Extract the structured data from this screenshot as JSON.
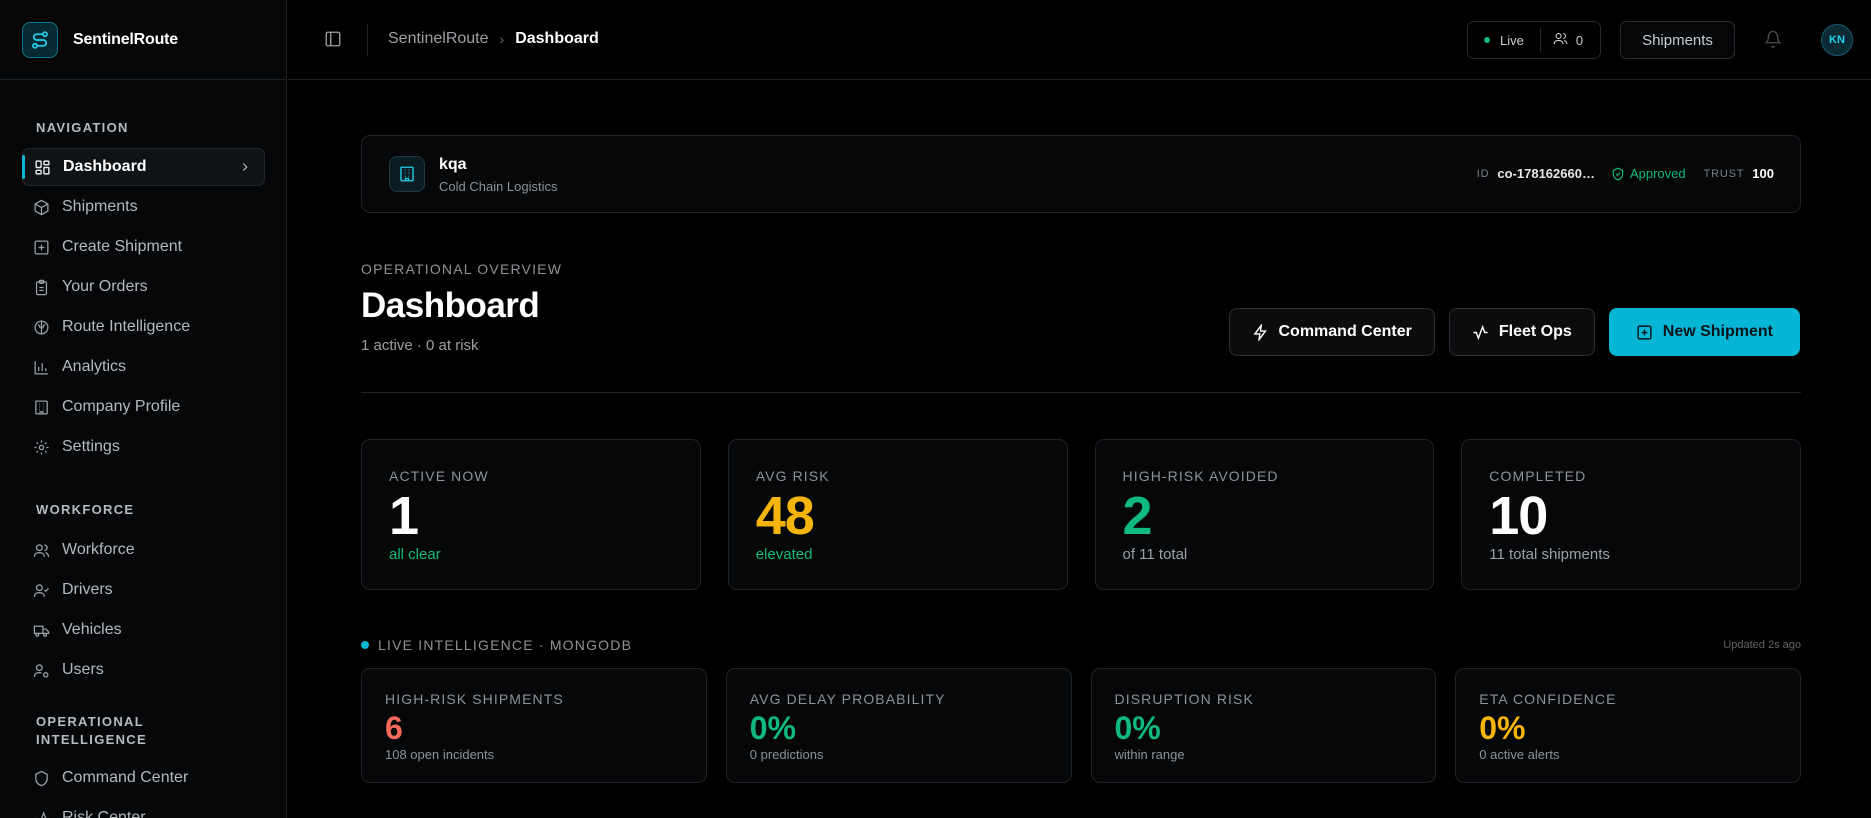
{
  "app": {
    "name": "SentinelRoute"
  },
  "colors": {
    "accent": "#06b6d4",
    "good": "#10b981",
    "warn": "#f5b40b",
    "danger": "#f26b5b"
  },
  "sidebar": {
    "sections": [
      {
        "title": "NAVIGATION",
        "items": [
          {
            "label": "Dashboard",
            "icon": "grid-icon",
            "active": true
          },
          {
            "label": "Shipments",
            "icon": "package-icon"
          },
          {
            "label": "Create Shipment",
            "icon": "plus-square-icon"
          },
          {
            "label": "Your Orders",
            "icon": "clipboard-icon"
          },
          {
            "label": "Route Intelligence",
            "icon": "brain-icon"
          },
          {
            "label": "Analytics",
            "icon": "bar-chart-icon"
          },
          {
            "label": "Company Profile",
            "icon": "building-icon"
          },
          {
            "label": "Settings",
            "icon": "gear-icon"
          }
        ]
      },
      {
        "title": "WORKFORCE",
        "items": [
          {
            "label": "Workforce",
            "icon": "users-icon"
          },
          {
            "label": "Drivers",
            "icon": "user-check-icon"
          },
          {
            "label": "Vehicles",
            "icon": "truck-icon"
          },
          {
            "label": "Users",
            "icon": "user-cog-icon"
          }
        ]
      },
      {
        "title": "OPERATIONAL INTELLIGENCE",
        "items": [
          {
            "label": "Command Center",
            "icon": "shield-icon"
          },
          {
            "label": "Risk Center",
            "icon": "activity-icon"
          }
        ]
      }
    ]
  },
  "header": {
    "breadcrumb_root": "SentinelRoute",
    "breadcrumb_current": "Dashboard",
    "live_label": "Live",
    "user_count": "0",
    "shipments_button": "Shipments",
    "avatar_initials": "KN"
  },
  "company": {
    "name": "kqa",
    "type": "Cold Chain Logistics",
    "id_label": "ID",
    "id_value": "co-178162660…",
    "status": "Approved",
    "trust_label": "TRUST",
    "trust_value": "100"
  },
  "page": {
    "overline": "OPERATIONAL OVERVIEW",
    "title": "Dashboard",
    "subtitle": "1 active · 0 at risk",
    "actions": {
      "command_center": "Command Center",
      "fleet_ops": "Fleet Ops",
      "new_shipment": "New Shipment"
    }
  },
  "stats": [
    {
      "label": "ACTIVE NOW",
      "value": "1",
      "note": "all clear",
      "value_color": "#ffffff",
      "note_color": "#10b981"
    },
    {
      "label": "AVG RISK",
      "value": "48",
      "note": "elevated",
      "value_color": "#f5b40b",
      "note_color": "#10b981"
    },
    {
      "label": "HIGH-RISK AVOIDED",
      "value": "2",
      "note": "of 11 total",
      "value_color": "#10b981",
      "note_color": "#9ca0a4"
    },
    {
      "label": "COMPLETED",
      "value": "10",
      "note": "11 total shipments",
      "value_color": "#ffffff",
      "note_color": "#9ca0a4"
    }
  ],
  "intel": {
    "title": "LIVE INTELLIGENCE · MONGODB",
    "updated": "Updated 2s ago",
    "cards": [
      {
        "label": "HIGH-RISK SHIPMENTS",
        "value": "6",
        "note": "108 open incidents",
        "value_color": "#f26b5b"
      },
      {
        "label": "AVG DELAY PROBABILITY",
        "value": "0%",
        "note": "0 predictions",
        "value_color": "#10b981"
      },
      {
        "label": "DISRUPTION RISK",
        "value": "0%",
        "note": "within range",
        "value_color": "#10b981"
      },
      {
        "label": "ETA CONFIDENCE",
        "value": "0%",
        "note": "0 active alerts",
        "value_color": "#f5b40b"
      }
    ]
  }
}
